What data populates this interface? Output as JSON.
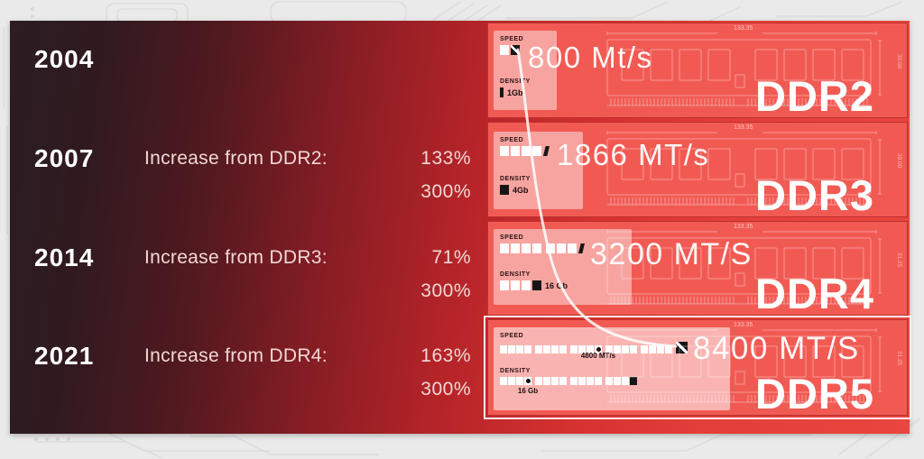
{
  "colors": {
    "page_bg": "#eaeaea",
    "panel_gradient_dark": "#2b1d22",
    "panel_gradient_red": "#e9463f",
    "row_fill": "#f15a53",
    "row_border": "#bb2f2d",
    "card_bg": "rgba(255,255,255,0.45)",
    "bar_white": "#ffffff",
    "bar_black": "#161616",
    "text_white": "#ffffff",
    "text_pink": "#f2d8d5",
    "highlight_outline": "rgba(255,255,255,0.92)"
  },
  "timeline": {
    "rows": [
      {
        "year": "2004",
        "label": "",
        "pct_top": "",
        "pct_bottom": ""
      },
      {
        "year": "2007",
        "label": "Increase from DDR2:",
        "pct_top": "133%",
        "pct_bottom": "300%"
      },
      {
        "year": "2014",
        "label": "Increase from DDR3:",
        "pct_top": "71%",
        "pct_bottom": "300%"
      },
      {
        "year": "2021",
        "label": "Increase from DDR4:",
        "pct_top": "163%",
        "pct_bottom": "300%"
      }
    ]
  },
  "generations": [
    {
      "name": "DDR2",
      "speed": {
        "label": "SPEED",
        "value": "800 Mt/s",
        "cells": [
          [
            "w",
            "e"
          ]
        ]
      },
      "density": {
        "label": "DENSITY",
        "value": "1Gb",
        "cells": [
          [
            "t"
          ]
        ]
      },
      "dims": {
        "width": "133.35",
        "height": "30.00"
      },
      "highlight": false
    },
    {
      "name": "DDR3",
      "speed": {
        "label": "SPEED",
        "value": "1866 MT/s",
        "cells": [
          [
            "w",
            "w",
            "w",
            "w",
            "p"
          ]
        ]
      },
      "density": {
        "label": "DENSITY",
        "value": "4Gb",
        "cells": [
          [
            "k"
          ]
        ]
      },
      "dims": {
        "width": "133.35",
        "height": "30.00"
      },
      "highlight": false
    },
    {
      "name": "DDR4",
      "speed": {
        "label": "SPEED",
        "value": "3200 MT/S",
        "cells": [
          [
            "w",
            "w",
            "w",
            "w"
          ],
          [
            "w",
            "w",
            "w",
            "p"
          ]
        ]
      },
      "density": {
        "label": "DENSITY",
        "value": "16 Gb",
        "cells": [
          [
            "w",
            "w",
            "w",
            "k"
          ]
        ]
      },
      "dims": {
        "width": "133.35",
        "height": "31.25"
      },
      "highlight": false
    },
    {
      "name": "DDR5",
      "speed": {
        "label": "SPEED",
        "value": "8400 MT/S",
        "marker_label": "4800 MT/s",
        "cells": [
          [
            "w",
            "w",
            "w",
            "w"
          ],
          [
            "w",
            "w",
            "w",
            "w"
          ],
          [
            "w",
            "w",
            "w",
            "d"
          ],
          [
            "w",
            "w",
            "w",
            "w"
          ],
          [
            "w",
            "w",
            "w",
            "w"
          ],
          [
            "e"
          ]
        ]
      },
      "density": {
        "label": "DENSITY",
        "marker_label": "16 Gb",
        "cells": [
          [
            "w",
            "w",
            "w",
            "d"
          ],
          [
            "w",
            "w",
            "w",
            "w"
          ],
          [
            "w",
            "w",
            "w",
            "w"
          ],
          [
            "w",
            "w",
            "w",
            "k"
          ]
        ]
      },
      "dims": {
        "width": "133.35",
        "height": "31.25"
      },
      "highlight": true
    }
  ],
  "chart_data": {
    "type": "table",
    "categories": [
      "DDR2",
      "DDR3",
      "DDR4",
      "DDR5"
    ],
    "years": [
      2004,
      2007,
      2014,
      2021
    ],
    "speed_mts": [
      800,
      1866,
      3200,
      8400
    ],
    "ddr5_marker_speed_mts": 4800,
    "density_labels": [
      "1Gb",
      "4Gb",
      "16 Gb",
      "16 Gb"
    ],
    "increase_from_previous_pct": [
      null,
      133,
      71,
      163
    ],
    "secondary_increase_pct": [
      null,
      300,
      300,
      300
    ],
    "module_width_mm": [
      133.35,
      133.35,
      133.35,
      133.35
    ],
    "module_height_mm": [
      30.0,
      30.0,
      31.25,
      31.25
    ]
  }
}
